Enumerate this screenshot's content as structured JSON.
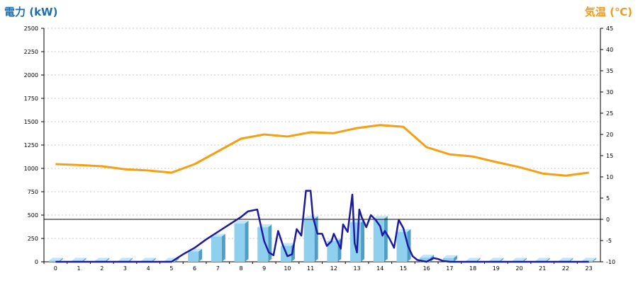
{
  "chart_data": {
    "type": "bar+line",
    "left_axis_title": "電力 (kW)",
    "right_axis_title": "気温 (℃)",
    "x_categories": [
      "0",
      "1",
      "2",
      "3",
      "4",
      "5",
      "6",
      "7",
      "8",
      "9",
      "10",
      "11",
      "12",
      "13",
      "14",
      "15",
      "16",
      "17",
      "18",
      "19",
      "20",
      "21",
      "22",
      "23"
    ],
    "left_axis": {
      "ylim": [
        0,
        2500
      ],
      "ticks": [
        0,
        250,
        500,
        750,
        1000,
        1250,
        1500,
        1750,
        2000,
        2250,
        2500
      ]
    },
    "right_axis": {
      "ylim": [
        -10,
        45
      ],
      "ticks": [
        -10,
        -5,
        0,
        5,
        10,
        15,
        20,
        25,
        30,
        35,
        40,
        45
      ]
    },
    "reference_line_temp": 0,
    "grid": true,
    "colors": {
      "bar_face": "#8fd0ee",
      "bar_side": "#4f9ec6",
      "bar_top": "#c2e6f7",
      "power_line": "#1c1aa0",
      "temperature_line": "#f5a012",
      "grid": "#c8c8c8",
      "left_title": "#1a6fb3",
      "right_title": "#f39a1c"
    },
    "series": [
      {
        "kind": "bar",
        "values": [
          12,
          12,
          12,
          12,
          12,
          12,
          110,
          270,
          410,
          370,
          170,
          460,
          220,
          420,
          460,
          320,
          45,
          40,
          12,
          12,
          12,
          12,
          12,
          12
        ]
      },
      {
        "kind": "temperature_line",
        "x": [
          0,
          1,
          2,
          3,
          4,
          5,
          6,
          7,
          8,
          9,
          10,
          11,
          12,
          13,
          14,
          14.5,
          15,
          16,
          17,
          18,
          19,
          20,
          21,
          22,
          23
        ],
        "values": [
          13,
          12.8,
          12.5,
          11.8,
          11.5,
          11,
          13,
          16,
          19,
          20,
          19.5,
          20.5,
          20.3,
          21.5,
          22.2,
          22,
          21.8,
          17,
          15.3,
          14.8,
          13.5,
          12.3,
          10.8,
          10.3,
          11
        ]
      },
      {
        "kind": "power_line",
        "x": [
          0,
          5,
          5.5,
          6,
          6.5,
          7,
          7.5,
          8,
          8.3,
          8.7,
          9,
          9.2,
          9.4,
          9.6,
          9.8,
          10,
          10.2,
          10.4,
          10.6,
          10.8,
          11,
          11.1,
          11.3,
          11.5,
          11.7,
          11.9,
          12,
          12.3,
          12.4,
          12.6,
          12.8,
          12.9,
          13,
          13.1,
          13.2,
          13.4,
          13.6,
          13.8,
          14,
          14.1,
          14.2,
          14.4,
          14.6,
          14.8,
          15,
          15.2,
          15.4,
          15.6,
          16,
          16.3,
          16.5,
          16.7,
          17,
          17.3,
          17.5,
          18,
          19,
          20,
          21,
          22,
          23
        ],
        "values": [
          0,
          0,
          80,
          150,
          240,
          320,
          400,
          480,
          540,
          560,
          220,
          100,
          70,
          330,
          180,
          60,
          80,
          350,
          280,
          760,
          760,
          480,
          300,
          300,
          170,
          220,
          300,
          140,
          400,
          320,
          720,
          200,
          100,
          560,
          480,
          370,
          500,
          450,
          380,
          280,
          330,
          250,
          150,
          450,
          360,
          170,
          60,
          20,
          0,
          40,
          30,
          10,
          0,
          0,
          0,
          0,
          0,
          0,
          0,
          0,
          0
        ]
      }
    ]
  }
}
